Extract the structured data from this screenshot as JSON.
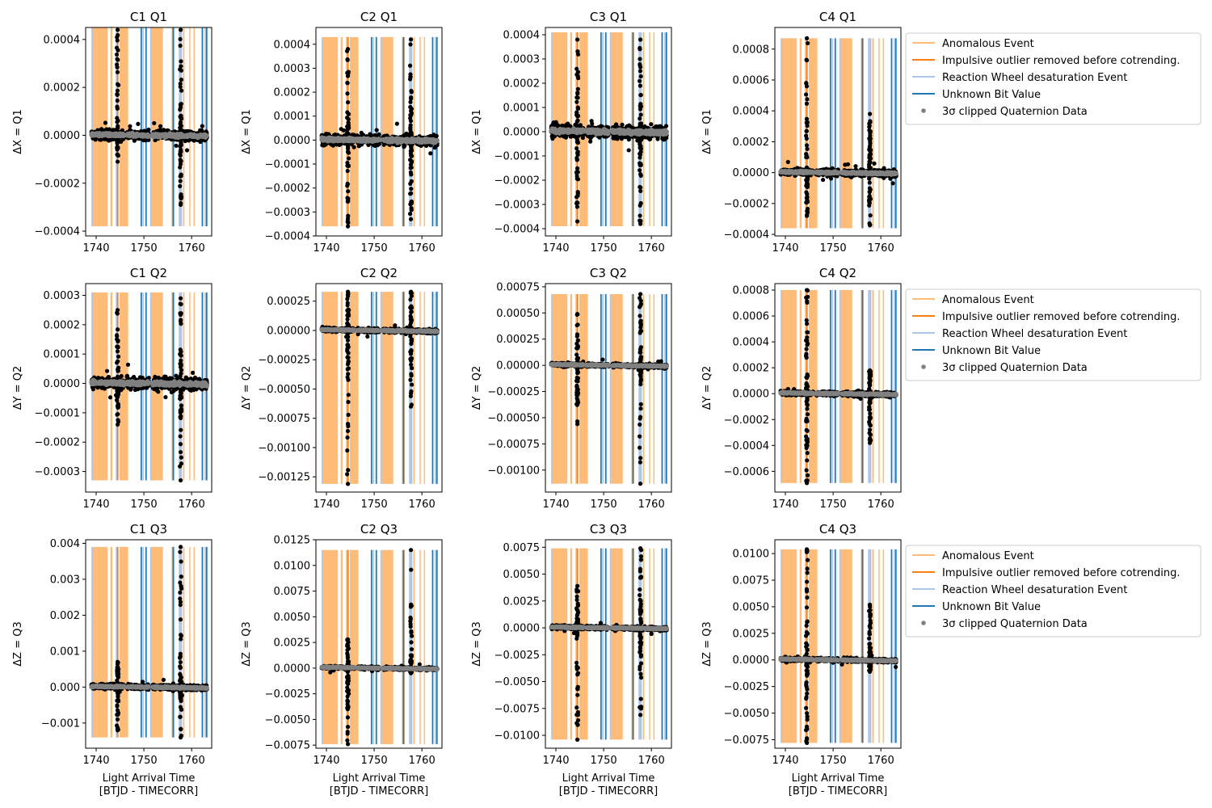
{
  "figure": {
    "xlabel_line1": "Light Arrival Time",
    "xlabel_line2": "[BTJD - TIMECORR]",
    "ylabels": [
      "ΔX = Q1",
      "ΔY = Q2",
      "ΔZ = Q3"
    ],
    "legend": [
      {
        "label": "Anomalous Event",
        "color": "#ffbb78",
        "marker": "line"
      },
      {
        "label": "Impulsive outlier removed before cotrending.",
        "color": "#ff7f0e",
        "marker": "line"
      },
      {
        "label": "Reaction Wheel desaturation Event",
        "color": "#aec7e8",
        "marker": "line"
      },
      {
        "label": "Unknown Bit Value",
        "color": "#1f77b4",
        "marker": "line"
      },
      {
        "label": "3σ clipped Quaternion Data",
        "color": "#808080",
        "marker": "dot"
      }
    ],
    "colors": {
      "anomalous": "#ffbb78",
      "impulsive": "#ff7f0e",
      "desat": "#aec7e8",
      "unknown": "#1f77b4",
      "clipped": "#808080",
      "raw": "#000000"
    }
  },
  "chart_data": [
    {
      "title": "C1 Q1",
      "type": "scatter",
      "ylim": [
        -0.00042,
        0.00045
      ],
      "yticks": [
        -0.0004,
        -0.0002,
        0.0,
        0.0002,
        0.0004
      ],
      "yticklabels": [
        "−0.0004",
        "−0.0002",
        "0.0000",
        "0.0002",
        "0.0004"
      ],
      "xlim": [
        1737.8,
        1764.2
      ],
      "xticks": [
        1740,
        1750,
        1760
      ],
      "band_range": [
        -0.00038,
        0.00045
      ],
      "spread": 1.2e-05,
      "spikes": [
        {
          "x": 1744.5,
          "lo": -0.00011,
          "hi": 0.00044
        },
        {
          "x": 1757.7,
          "lo": -0.00029,
          "hi": 0.00044
        }
      ]
    },
    {
      "title": "C2 Q1",
      "type": "scatter",
      "ylim": [
        -0.0004,
        0.00047
      ],
      "yticks": [
        -0.0004,
        -0.0003,
        -0.0002,
        -0.0001,
        0.0,
        0.0001,
        0.0002,
        0.0003,
        0.0004
      ],
      "yticklabels": [
        "−0.0004",
        "−0.0003",
        "−0.0002",
        "−0.0001",
        "0.0000",
        "0.0001",
        "0.0002",
        "0.0003",
        "0.0004"
      ],
      "xlim": [
        1737.8,
        1764.2
      ],
      "xticks": [
        1740,
        1750,
        1760
      ],
      "band_range": [
        -0.00036,
        0.00043
      ],
      "spread": 1.3e-05,
      "spikes": [
        {
          "x": 1744.5,
          "lo": -0.00036,
          "hi": 0.00038
        },
        {
          "x": 1757.7,
          "lo": -0.00033,
          "hi": 0.00042
        }
      ]
    },
    {
      "title": "C3 Q1",
      "type": "scatter",
      "ylim": [
        -0.00043,
        0.00043
      ],
      "yticks": [
        -0.0004,
        -0.0003,
        -0.0002,
        -0.0001,
        0.0,
        0.0001,
        0.0002,
        0.0003,
        0.0004
      ],
      "yticklabels": [
        "−0.0004",
        "−0.0003",
        "−0.0002",
        "−0.0001",
        "0.0000",
        "0.0001",
        "0.0002",
        "0.0003",
        "0.0004"
      ],
      "xlim": [
        1737.8,
        1764.2
      ],
      "xticks": [
        1740,
        1750,
        1760
      ],
      "band_range": [
        -0.00039,
        0.00041
      ],
      "spread": 1.5e-05,
      "spikes": [
        {
          "x": 1744.5,
          "lo": -0.00037,
          "hi": 0.00038
        },
        {
          "x": 1757.7,
          "lo": -0.00038,
          "hi": 0.00038
        }
      ]
    },
    {
      "title": "C4 Q1",
      "type": "scatter",
      "ylim": [
        -0.00041,
        0.00094
      ],
      "yticks": [
        -0.0004,
        -0.0002,
        0.0,
        0.0002,
        0.0004,
        0.0006,
        0.0008
      ],
      "yticklabels": [
        "−0.0004",
        "−0.0002",
        "0.0000",
        "0.0002",
        "0.0004",
        "0.0006",
        "0.0008"
      ],
      "xlim": [
        1737.8,
        1764.2
      ],
      "xticks": [
        1740,
        1750,
        1760
      ],
      "band_range": [
        -0.00036,
        0.00087
      ],
      "spread": 1.2e-05,
      "spikes": [
        {
          "x": 1744.5,
          "lo": -0.00028,
          "hi": 0.00087
        },
        {
          "x": 1757.7,
          "lo": -0.00034,
          "hi": 0.00038
        }
      ]
    },
    {
      "title": "C1 Q2",
      "type": "scatter",
      "ylim": [
        -0.00037,
        0.00034
      ],
      "yticks": [
        -0.0003,
        -0.0002,
        -0.0001,
        0.0,
        0.0001,
        0.0002,
        0.0003
      ],
      "yticklabels": [
        "−0.0003",
        "−0.0002",
        "−0.0001",
        "0.0000",
        "0.0001",
        "0.0002",
        "0.0003"
      ],
      "xlim": [
        1737.8,
        1764.2
      ],
      "xticks": [
        1740,
        1750,
        1760
      ],
      "band_range": [
        -0.00033,
        0.00031
      ],
      "spread": 1.2e-05,
      "spikes": [
        {
          "x": 1744.5,
          "lo": -0.00014,
          "hi": 0.00025
        },
        {
          "x": 1757.7,
          "lo": -0.00033,
          "hi": 0.00029
        }
      ]
    },
    {
      "title": "C2 Q2",
      "type": "scatter",
      "ylim": [
        -0.00138,
        0.0004
      ],
      "yticks": [
        -0.00125,
        -0.001,
        -0.00075,
        -0.0005,
        -0.00025,
        0.0,
        0.00025
      ],
      "yticklabels": [
        "−0.00125",
        "−0.00100",
        "−0.00075",
        "−0.00050",
        "−0.00025",
        "0.00000",
        "0.00025"
      ],
      "xlim": [
        1737.8,
        1764.2
      ],
      "xticks": [
        1740,
        1750,
        1760
      ],
      "band_range": [
        -0.00131,
        0.00033
      ],
      "spread": 1e-05,
      "spikes": [
        {
          "x": 1744.5,
          "lo": -0.00131,
          "hi": 0.00033
        },
        {
          "x": 1757.7,
          "lo": -0.00065,
          "hi": 0.00033
        }
      ]
    },
    {
      "title": "C3 Q2",
      "type": "scatter",
      "ylim": [
        -0.00121,
        0.00078
      ],
      "yticks": [
        -0.001,
        -0.00075,
        -0.0005,
        -0.00025,
        0.0,
        0.00025,
        0.0005,
        0.00075
      ],
      "yticklabels": [
        "−0.00100",
        "−0.00075",
        "−0.00050",
        "−0.00025",
        "0.00000",
        "0.00025",
        "0.00050",
        "0.00075"
      ],
      "xlim": [
        1737.8,
        1764.2
      ],
      "xticks": [
        1740,
        1750,
        1760
      ],
      "band_range": [
        -0.00113,
        0.00068
      ],
      "spread": 1e-05,
      "spikes": [
        {
          "x": 1744.5,
          "lo": -0.00056,
          "hi": 0.00049
        },
        {
          "x": 1757.7,
          "lo": -0.00113,
          "hi": 0.00068
        }
      ]
    },
    {
      "title": "C4 Q2",
      "type": "scatter",
      "ylim": [
        -0.00076,
        0.00085
      ],
      "yticks": [
        -0.0006,
        -0.0004,
        -0.0002,
        0.0,
        0.0002,
        0.0004,
        0.0006,
        0.0008
      ],
      "yticklabels": [
        "−0.0006",
        "−0.0004",
        "−0.0002",
        "0.0000",
        "0.0002",
        "0.0004",
        "0.0006",
        "0.0008"
      ],
      "xlim": [
        1737.8,
        1764.2
      ],
      "xticks": [
        1740,
        1750,
        1760
      ],
      "band_range": [
        -0.00069,
        0.0008
      ],
      "spread": 1e-05,
      "spikes": [
        {
          "x": 1744.5,
          "lo": -0.00069,
          "hi": 0.0008
        },
        {
          "x": 1757.7,
          "lo": -0.00038,
          "hi": 0.00018
        }
      ]
    },
    {
      "title": "C1 Q3",
      "type": "scatter",
      "ylim": [
        -0.0017,
        0.0041
      ],
      "yticks": [
        -0.001,
        0.0,
        0.001,
        0.002,
        0.003,
        0.004
      ],
      "yticklabels": [
        "−0.001",
        "0.000",
        "0.001",
        "0.002",
        "0.003",
        "0.004"
      ],
      "xlim": [
        1737.8,
        1764.2
      ],
      "xticks": [
        1740,
        1750,
        1760
      ],
      "band_range": [
        -0.0014,
        0.0039
      ],
      "spread": 4e-05,
      "spikes": [
        {
          "x": 1744.5,
          "lo": -0.0012,
          "hi": 0.0007
        },
        {
          "x": 1757.7,
          "lo": -0.0014,
          "hi": 0.0039
        }
      ]
    },
    {
      "title": "C2 Q3",
      "type": "scatter",
      "ylim": [
        -0.0078,
        0.0125
      ],
      "yticks": [
        -0.0075,
        -0.005,
        -0.0025,
        0.0,
        0.0025,
        0.005,
        0.0075,
        0.01,
        0.0125
      ],
      "yticklabels": [
        "−0.0075",
        "−0.0050",
        "−0.0025",
        "0.0000",
        "0.0025",
        "0.0050",
        "0.0075",
        "0.0100",
        "0.0125"
      ],
      "xlim": [
        1737.8,
        1764.2
      ],
      "xticks": [
        1740,
        1750,
        1760
      ],
      "band_range": [
        -0.0074,
        0.0115
      ],
      "spread": 8e-05,
      "spikes": [
        {
          "x": 1744.5,
          "lo": -0.0074,
          "hi": 0.0028
        },
        {
          "x": 1757.7,
          "lo": -0.0005,
          "hi": 0.0115
        }
      ]
    },
    {
      "title": "C3 Q3",
      "type": "scatter",
      "ylim": [
        -0.0112,
        0.0082
      ],
      "yticks": [
        -0.01,
        -0.0075,
        -0.005,
        -0.0025,
        0.0,
        0.0025,
        0.005,
        0.0075
      ],
      "yticklabels": [
        "−0.0100",
        "−0.0075",
        "−0.0050",
        "−0.0025",
        "0.0000",
        "0.0025",
        "0.0050",
        "0.0075"
      ],
      "xlim": [
        1737.8,
        1764.2
      ],
      "xticks": [
        1740,
        1750,
        1760
      ],
      "band_range": [
        -0.0104,
        0.0074
      ],
      "spread": 0.0001,
      "spikes": [
        {
          "x": 1744.5,
          "lo": -0.0104,
          "hi": 0.0039
        },
        {
          "x": 1757.7,
          "lo": -0.0081,
          "hi": 0.0074
        }
      ]
    },
    {
      "title": "C4 Q3",
      "type": "scatter",
      "ylim": [
        -0.0083,
        0.0113
      ],
      "yticks": [
        -0.0075,
        -0.005,
        -0.0025,
        0.0,
        0.0025,
        0.005,
        0.0075,
        0.01
      ],
      "yticklabels": [
        "−0.0075",
        "−0.0050",
        "−0.0025",
        "0.0000",
        "0.0025",
        "0.0050",
        "0.0075",
        "0.0100"
      ],
      "xlim": [
        1737.8,
        1764.2
      ],
      "xticks": [
        1740,
        1750,
        1760
      ],
      "band_range": [
        -0.0078,
        0.0104
      ],
      "spread": 0.0001,
      "spikes": [
        {
          "x": 1744.5,
          "lo": -0.0078,
          "hi": 0.0104
        },
        {
          "x": 1757.7,
          "lo": -0.0011,
          "hi": 0.0052
        }
      ]
    }
  ],
  "events": {
    "anomalous_bands": [
      [
        1739.2,
        1742.4
      ],
      [
        1743.0,
        1743.4
      ],
      [
        1744.1,
        1744.5
      ],
      [
        1744.9,
        1746.7
      ],
      [
        1751.6,
        1754.0
      ],
      [
        1755.8,
        1756.4
      ],
      [
        1758.2,
        1758.5
      ],
      [
        1759.5,
        1759.7
      ],
      [
        1760.4,
        1760.6
      ]
    ],
    "desat_bands": [
      [
        1739.0,
        1739.3
      ],
      [
        1744.2,
        1744.7
      ],
      [
        1749.7,
        1750.0
      ],
      [
        1751.3,
        1751.6
      ],
      [
        1757.3,
        1758.0
      ],
      [
        1762.7,
        1763.0
      ]
    ],
    "unknown_bands": [
      [
        1749.3,
        1749.6
      ],
      [
        1750.3,
        1750.6
      ],
      [
        1756.0,
        1756.3
      ],
      [
        1762.1,
        1762.4
      ],
      [
        1763.0,
        1763.3
      ]
    ],
    "gaps": [
      [
        1745.8,
        1746.4
      ],
      [
        1751.0,
        1751.8
      ],
      [
        1758.2,
        1758.5
      ]
    ]
  }
}
